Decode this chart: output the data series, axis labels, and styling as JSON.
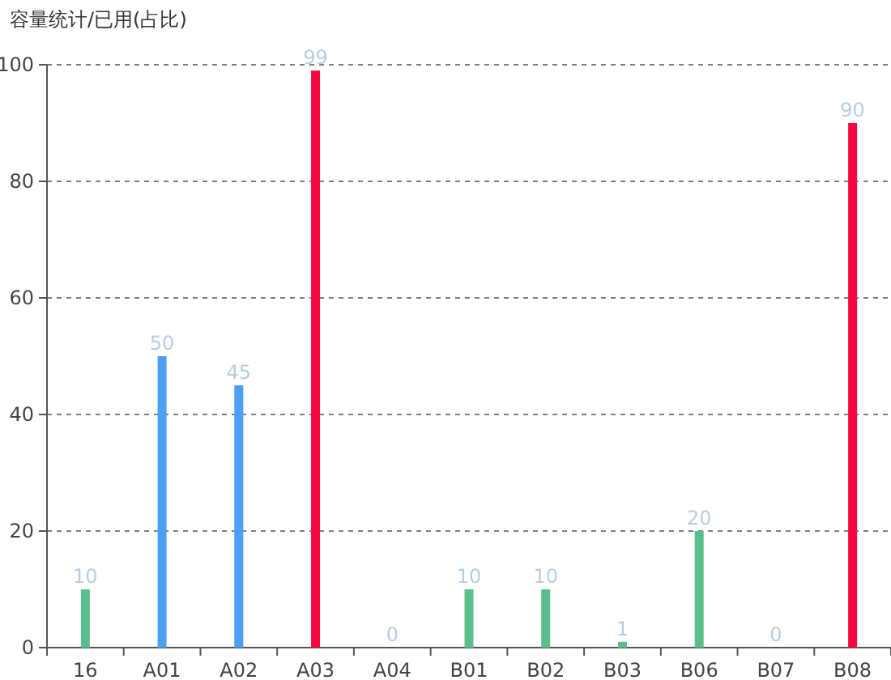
{
  "chart_data": {
    "type": "bar",
    "ylabel": "容量统计/已用(占比)",
    "categories": [
      "16",
      "A01",
      "A02",
      "A03",
      "A04",
      "B01",
      "B02",
      "B03",
      "B06",
      "B07",
      "B08"
    ],
    "values": [
      10,
      50,
      45,
      99,
      0,
      10,
      10,
      1,
      20,
      0,
      90
    ],
    "colors": [
      "#5abf8c",
      "#4d9ef5",
      "#4d9ef5",
      "#f5073f",
      "#5abf8c",
      "#5abf8c",
      "#5abf8c",
      "#5abf8c",
      "#5abf8c",
      "#5abf8c",
      "#f5073f"
    ],
    "ylim": [
      0,
      100
    ],
    "yticks": [
      0,
      20,
      40,
      60,
      80,
      100
    ],
    "grid": "y",
    "data_labels": true
  }
}
